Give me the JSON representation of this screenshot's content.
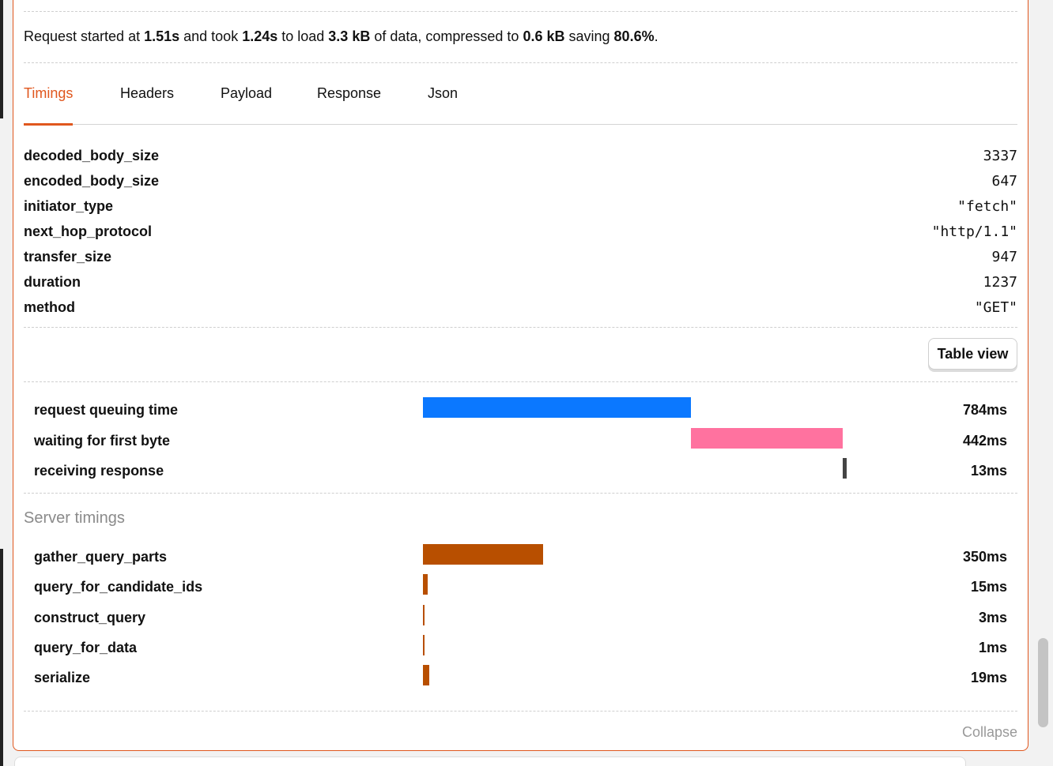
{
  "summary": {
    "t1": "Request started at ",
    "start": "1.51s",
    "t2": " and took ",
    "took": "1.24s",
    "t3": " to load ",
    "size": "3.3 kB",
    "t4": " of data, compressed to ",
    "compressed": "0.6 kB",
    "t5": " saving ",
    "saving": "80.6%",
    "t6": "."
  },
  "tabs": [
    {
      "label": "Timings",
      "active": true
    },
    {
      "label": "Headers",
      "active": false
    },
    {
      "label": "Payload",
      "active": false
    },
    {
      "label": "Response",
      "active": false
    },
    {
      "label": "Json",
      "active": false
    }
  ],
  "properties": [
    {
      "key": "decoded_body_size",
      "value": "3337"
    },
    {
      "key": "encoded_body_size",
      "value": "647"
    },
    {
      "key": "initiator_type",
      "value": "\"fetch\""
    },
    {
      "key": "next_hop_protocol",
      "value": "\"http/1.1\""
    },
    {
      "key": "transfer_size",
      "value": "947"
    },
    {
      "key": "duration",
      "value": "1237"
    },
    {
      "key": "method",
      "value": "\"GET\""
    }
  ],
  "table_view_label": "Table view",
  "timings": [
    {
      "label": "request queuing time",
      "value": "784ms",
      "ms": 784,
      "color": "#0b78ff"
    },
    {
      "label": "waiting for first byte",
      "value": "442ms",
      "ms": 442,
      "color": "#ff729f"
    },
    {
      "label": "receiving response",
      "value": "13ms",
      "ms": 13,
      "color": "#444444"
    }
  ],
  "server_timings_title": "Server timings",
  "server_timings": [
    {
      "label": "gather_query_parts",
      "value": "350ms",
      "ms": 350,
      "color": "#b84f00"
    },
    {
      "label": "query_for_candidate_ids",
      "value": "15ms",
      "ms": 15,
      "color": "#b84f00"
    },
    {
      "label": "construct_query",
      "value": "3ms",
      "ms": 3,
      "color": "#b84f00"
    },
    {
      "label": "query_for_data",
      "value": "1ms",
      "ms": 1,
      "color": "#b84f00"
    },
    {
      "label": "serialize",
      "value": "19ms",
      "ms": 19,
      "color": "#b84f00"
    }
  ],
  "collapse_label": "Collapse"
}
